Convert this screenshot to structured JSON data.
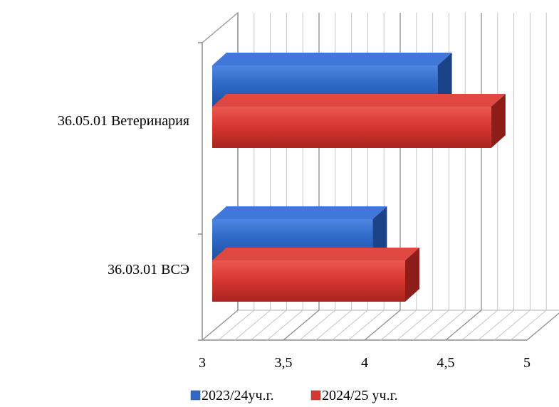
{
  "chart_data": {
    "type": "bar",
    "orientation": "horizontal",
    "three_d": true,
    "categories": [
      "36.05.01 Ветеринария",
      "36.03.01 ВСЭ"
    ],
    "series": [
      {
        "name": "2023/24уч.г.",
        "values": [
          4.45,
          4.05
        ],
        "color": "#2e69c9"
      },
      {
        "name": "2024/25 уч.г.",
        "values": [
          4.78,
          4.25
        ],
        "color": "#d93630"
      }
    ],
    "x_ticks": [
      "3",
      "3,5",
      "4",
      "4,5",
      "5"
    ],
    "xlim": [
      3,
      5
    ],
    "title": "",
    "xlabel": "",
    "ylabel": "",
    "grid": true,
    "legend_position": "bottom"
  }
}
